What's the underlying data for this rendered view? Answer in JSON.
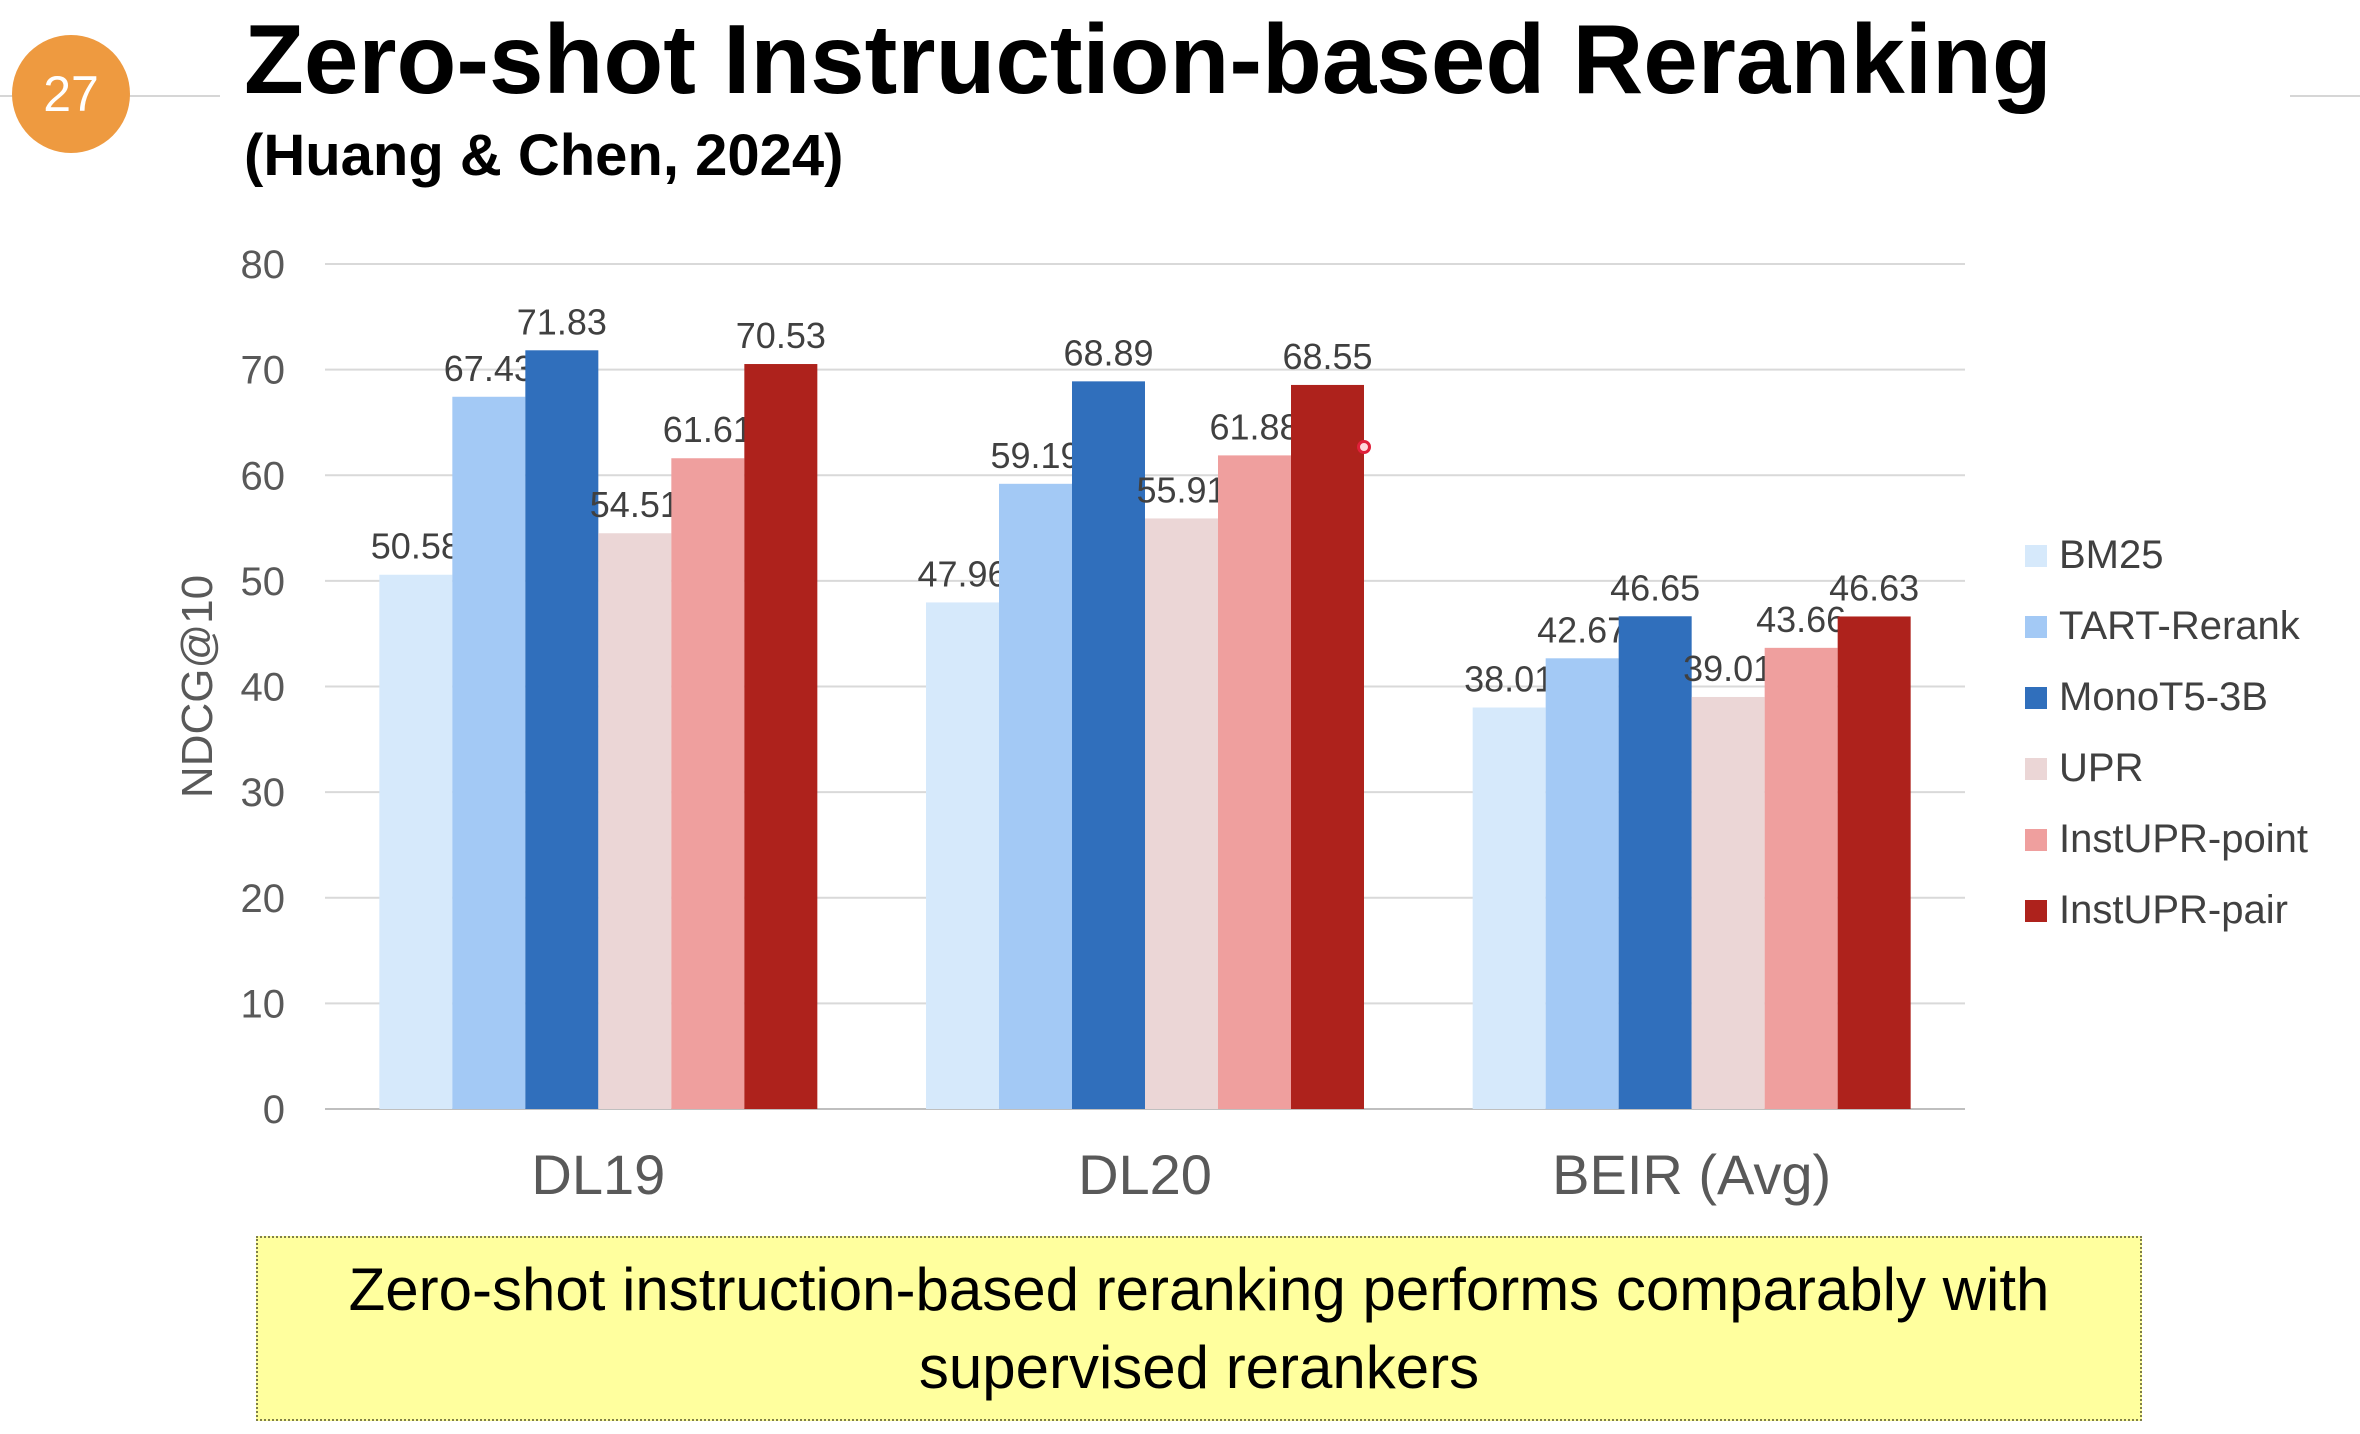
{
  "slide": {
    "number": "27",
    "title": "Zero-shot Instruction-based Reranking",
    "subtitle": "(Huang & Chen, 2024)",
    "takeaway": "Zero-shot instruction-based reranking performs comparably with supervised rerankers",
    "badge_color": "#ee9a40"
  },
  "chart_data": {
    "type": "bar",
    "title": "",
    "xlabel": "",
    "ylabel": "NDCG@10",
    "ylim": [
      0,
      80
    ],
    "yticks": [
      0,
      10,
      20,
      30,
      40,
      50,
      60,
      70,
      80
    ],
    "grid": true,
    "legend_position": "right",
    "categories": [
      "DL19",
      "DL20",
      "BEIR (Avg)"
    ],
    "series": [
      {
        "name": "BM25",
        "color": "#d6e9fb",
        "values": [
          50.58,
          47.96,
          38.01
        ]
      },
      {
        "name": "TART-Rerank",
        "color": "#a3c9f5",
        "values": [
          67.43,
          59.19,
          42.67
        ]
      },
      {
        "name": "MonoT5-3B",
        "color": "#306fbc",
        "values": [
          71.83,
          68.89,
          46.65
        ]
      },
      {
        "name": "UPR",
        "color": "#ebd6d6",
        "values": [
          54.51,
          55.91,
          39.01
        ]
      },
      {
        "name": "InstUPR-point",
        "color": "#ef9f9e",
        "values": [
          61.61,
          61.88,
          43.66
        ]
      },
      {
        "name": "InstUPR-pair",
        "color": "#ae221c",
        "values": [
          70.53,
          68.55,
          46.63
        ]
      }
    ]
  }
}
